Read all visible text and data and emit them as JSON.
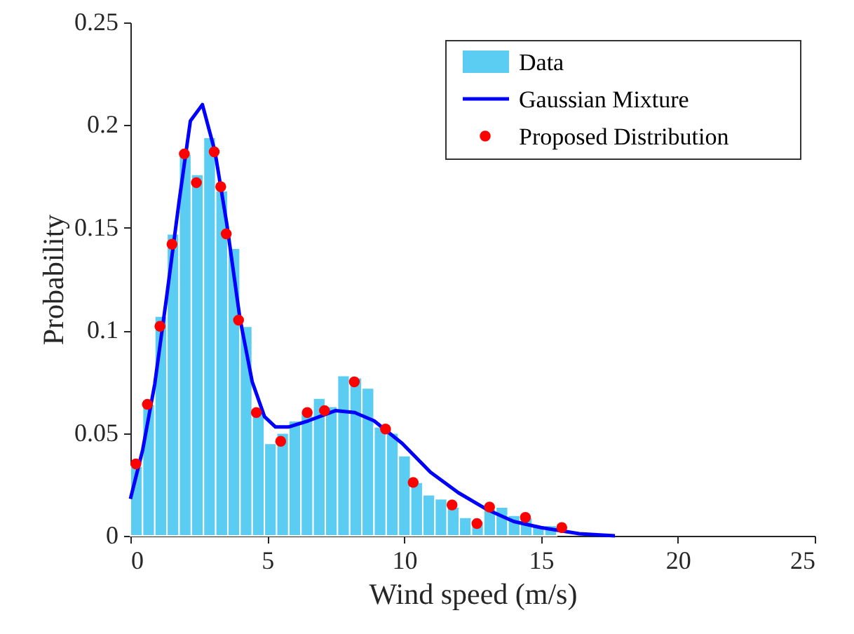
{
  "chart_data": {
    "type": "histogram",
    "xlabel": "Wind speed (m/s)",
    "ylabel": "Probability",
    "bins": [
      0,
      0.445,
      0.89,
      1.335,
      1.78,
      2.225,
      2.67,
      3.115,
      3.56,
      4.005,
      4.45,
      4.895,
      5.34,
      5.785,
      6.23,
      6.675,
      7.12,
      7.565,
      8.01,
      8.455,
      8.9,
      9.345,
      9.79,
      10.235,
      10.68,
      11.125,
      11.57,
      12.015,
      12.46,
      12.905,
      13.35,
      13.795,
      14.24,
      14.685,
      15.13,
      15.575
    ],
    "series": [
      {
        "name": "Data",
        "color": "#5bcdf2",
        "values": [
          0.034,
          0.064,
          0.107,
          0.147,
          0.186,
          0.176,
          0.194,
          0.168,
          0.14,
          0.102,
          0.061,
          0.045,
          0.05,
          0.056,
          0.06,
          0.067,
          0.063,
          0.078,
          0.077,
          0.072,
          0.053,
          0.05,
          0.039,
          0.026,
          0.02,
          0.018,
          0.014,
          0.009,
          0.007,
          0.013,
          0.014,
          0.01,
          0.009,
          0.005,
          0.005
        ]
      },
      {
        "name": "Gaussian Mixture",
        "type": "line",
        "color": "#0000ff",
        "marker": "none",
        "line_style": "solid",
        "x": [
          0,
          0.45,
          0.89,
          1.33,
          1.78,
          2.19,
          2.63,
          3.09,
          3.52,
          4.0,
          4.45,
          4.9,
          5.3,
          5.77,
          6.5,
          7.5,
          8.2,
          8.9,
          9.93,
          10.96,
          11.98,
          13.0,
          14.0,
          15.0,
          16.4,
          17.7
        ],
        "values": [
          0.018,
          0.042,
          0.074,
          0.117,
          0.163,
          0.202,
          0.21,
          0.187,
          0.152,
          0.106,
          0.075,
          0.058,
          0.053,
          0.053,
          0.056,
          0.061,
          0.06,
          0.056,
          0.045,
          0.031,
          0.021,
          0.013,
          0.007,
          0.004,
          0.001,
          0.0
        ]
      },
      {
        "name": "Proposed Distribution",
        "type": "scatter",
        "color": "#ff0000",
        "marker": "circle",
        "x": [
          0.2,
          0.62,
          1.08,
          1.52,
          1.97,
          2.41,
          3.06,
          3.3,
          3.5,
          3.95,
          4.6,
          5.49,
          6.46,
          7.09,
          8.18,
          9.32,
          10.33,
          11.75,
          12.66,
          13.12,
          14.43,
          15.76
        ],
        "values": [
          0.035,
          0.064,
          0.102,
          0.142,
          0.186,
          0.172,
          0.187,
          0.17,
          0.147,
          0.105,
          0.06,
          0.046,
          0.06,
          0.061,
          0.075,
          0.052,
          0.026,
          0.015,
          0.006,
          0.014,
          0.009,
          0.004
        ]
      }
    ],
    "xlim": [
      0,
      25
    ],
    "xticks": [
      0,
      5,
      10,
      15,
      20,
      25
    ],
    "ylim": [
      0,
      0.25
    ],
    "yticks": [
      0,
      0.05,
      0.1,
      0.15,
      0.2,
      0.25
    ],
    "grid": false,
    "legend": "top right"
  }
}
